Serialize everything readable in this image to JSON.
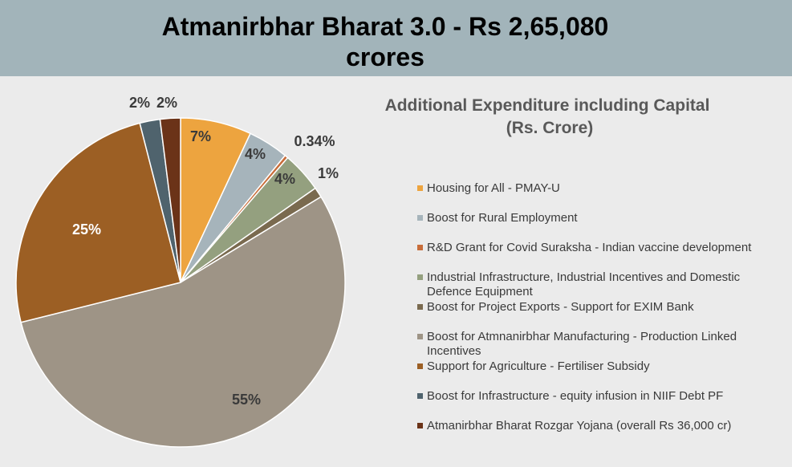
{
  "header": {
    "title": "Atmanirbhar Bharat 3.0 - Rs  2,65,080\ncrores",
    "background": "#a2b4ba"
  },
  "chart_data": {
    "type": "pie",
    "title": "Additional Expenditure including Capital",
    "subtitle": "(Rs. Crore)",
    "legend_position": "right",
    "slices": [
      {
        "name": "Housing for All - PMAY-U",
        "percent": 7,
        "label": "7%",
        "color": "#eda43f"
      },
      {
        "name": "Boost for Rural Employment",
        "percent": 4,
        "label": "4%",
        "color": "#a6b4bb"
      },
      {
        "name": "R&D Grant for Covid Suraksha - Indian vaccine development",
        "percent": 0.34,
        "label": "0.34%",
        "color": "#c86d3a"
      },
      {
        "name": "Industrial Infrastructure, Industrial Incentives and Domestic Defence Equipment",
        "percent": 4,
        "label": "4%",
        "color": "#94a07f"
      },
      {
        "name": "Boost for Project Exports - Support for EXIM Bank",
        "percent": 1,
        "label": "1%",
        "color": "#7a6a4f"
      },
      {
        "name": "Boost for Atmnanirbhar Manufacturing - Production Linked Incentives",
        "percent": 55,
        "label": "55%",
        "color": "#9e9486"
      },
      {
        "name": "Support for Agriculture - Fertiliser Subsidy",
        "percent": 25,
        "label": "25%",
        "color": "#9c5f24"
      },
      {
        "name": "Boost for Infrastructure - equity infusion in NIIF Debt PF",
        "percent": 2,
        "label": "2%",
        "color": "#4f636d"
      },
      {
        "name": "Atmanirbhar Bharat Rozgar Yojana (overall Rs 36,000 cr)",
        "percent": 2,
        "label": "2%",
        "color": "#6b3318"
      }
    ]
  }
}
